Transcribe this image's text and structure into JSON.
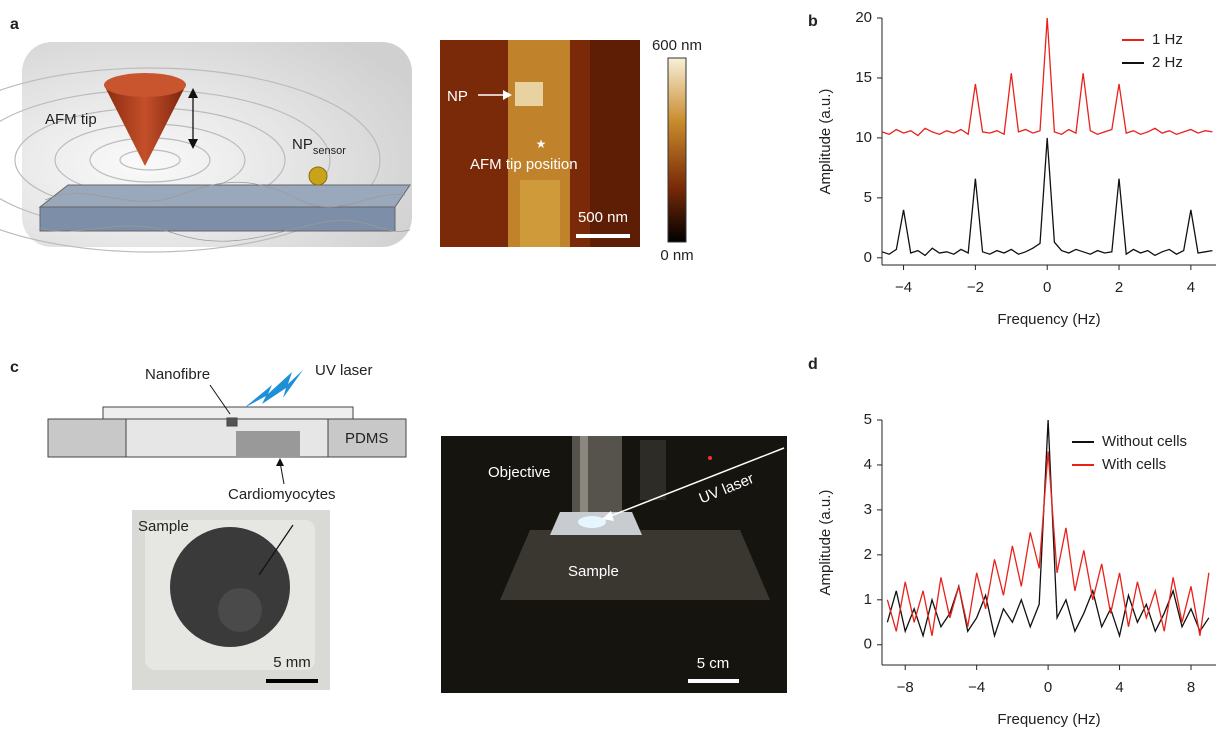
{
  "figure": {
    "panel_labels": {
      "a": "a",
      "b": "b",
      "c": "c",
      "d": "d"
    },
    "afm_schematic": {
      "tip_label": "AFM tip",
      "np_label": "NP",
      "np_subscript": "sensor"
    },
    "afm_image": {
      "np_label": "NP",
      "tip_position": "AFM tip position",
      "scale_bar": "500 nm",
      "colorbar_max": "600 nm",
      "colorbar_min": "0 nm"
    },
    "device_schematic": {
      "nanofibre": "Nanofibre",
      "uv_laser": "UV laser",
      "pdms": "PDMS",
      "cells": "Cardiomyocytes"
    },
    "sample_photo": {
      "label": "Sample",
      "scale_bar": "5 mm"
    },
    "setup_photo": {
      "objective": "Objective",
      "uv_laser": "UV laser",
      "sample": "Sample",
      "scale_bar": "5 cm"
    }
  },
  "chart_data": [
    {
      "type": "line",
      "x_label": "Frequency (Hz)",
      "y_label": "Amplitude (a.u.)",
      "legend": "upper right",
      "x": [
        -4.6,
        -4.4,
        -4.2,
        -4.0,
        -3.8,
        -3.6,
        -3.4,
        -3.2,
        -3.0,
        -2.8,
        -2.6,
        -2.4,
        -2.2,
        -2.0,
        -1.8,
        -1.6,
        -1.4,
        -1.2,
        -1.0,
        -0.8,
        -0.6,
        -0.4,
        -0.2,
        0,
        0.2,
        0.4,
        0.6,
        0.8,
        1.0,
        1.2,
        1.4,
        1.6,
        1.8,
        2.0,
        2.2,
        2.4,
        2.6,
        2.8,
        3.0,
        3.2,
        3.4,
        3.6,
        3.8,
        4.0,
        4.2,
        4.4,
        4.6
      ],
      "series": [
        {
          "name": "1 Hz",
          "color": "#e8221b",
          "values": [
            10.5,
            10.3,
            10.7,
            10.4,
            10.6,
            10.2,
            10.8,
            10.5,
            10.3,
            10.6,
            10.4,
            10.7,
            10.3,
            14.5,
            10.5,
            10.4,
            10.6,
            10.3,
            15.4,
            10.5,
            10.7,
            10.4,
            10.6,
            20,
            10.5,
            10.3,
            10.7,
            10.4,
            15.4,
            10.6,
            10.3,
            10.5,
            10.7,
            14.5,
            10.4,
            10.6,
            10.3,
            10.5,
            10.8,
            10.4,
            10.6,
            10.3,
            10.5,
            10.7,
            10.4,
            10.6,
            10.5
          ]
        },
        {
          "name": "2 Hz",
          "color": "#111111",
          "values": [
            0.5,
            0.3,
            0.7,
            4.0,
            0.4,
            0.6,
            0.2,
            0.8,
            0.4,
            0.5,
            0.3,
            0.7,
            0.4,
            6.6,
            0.5,
            0.3,
            0.6,
            0.4,
            0.7,
            0.3,
            0.5,
            0.8,
            1.2,
            10,
            1.3,
            0.6,
            0.4,
            0.7,
            0.5,
            0.3,
            0.6,
            0.4,
            0.5,
            6.6,
            0.3,
            0.7,
            0.4,
            0.6,
            0.2,
            0.5,
            0.7,
            0.3,
            0.6,
            4.0,
            0.4,
            0.5,
            0.6
          ]
        }
      ],
      "xlim": [
        -4.6,
        4.7
      ],
      "ylim": [
        -0.6,
        20
      ],
      "xticks": [
        {
          "value": -4,
          "label": "−4"
        },
        {
          "value": -2,
          "label": "−2"
        },
        0,
        2,
        4
      ],
      "yticks": [
        0,
        5,
        10,
        15,
        20
      ]
    },
    {
      "type": "line",
      "x_label": "Frequency (Hz)",
      "y_label": "Amplitude (a.u.)",
      "legend": "upper right",
      "x": [
        -9,
        -8.5,
        -8,
        -7.5,
        -7,
        -6.5,
        -6,
        -5.5,
        -5,
        -4.5,
        -4,
        -3.5,
        -3,
        -2.5,
        -2,
        -1.5,
        -1,
        -0.5,
        0,
        0.5,
        1,
        1.5,
        2,
        2.5,
        3,
        3.5,
        4,
        4.5,
        5,
        5.5,
        6,
        6.5,
        7,
        7.5,
        8,
        8.5,
        9
      ],
      "series": [
        {
          "name": "Without cells",
          "color": "#111111",
          "values": [
            0.5,
            1.2,
            0.3,
            0.8,
            0.2,
            1.0,
            0.4,
            0.7,
            1.3,
            0.3,
            0.6,
            1.1,
            0.2,
            0.8,
            0.5,
            1.0,
            0.4,
            0.9,
            5,
            0.6,
            1.0,
            0.3,
            0.7,
            1.2,
            0.4,
            0.8,
            0.2,
            1.1,
            0.5,
            0.9,
            0.3,
            0.7,
            1.2,
            0.4,
            0.8,
            0.3,
            0.6
          ]
        },
        {
          "name": "With cells",
          "color": "#e8221b",
          "values": [
            1.0,
            0.3,
            1.4,
            0.5,
            1.2,
            0.2,
            1.5,
            0.6,
            1.3,
            0.4,
            1.6,
            0.8,
            1.9,
            1.1,
            2.2,
            1.3,
            2.5,
            1.7,
            4.3,
            1.6,
            2.6,
            1.2,
            2.1,
            1.0,
            1.8,
            0.7,
            1.6,
            0.4,
            1.4,
            0.6,
            1.2,
            0.3,
            1.5,
            0.5,
            1.3,
            0.2,
            1.6
          ]
        }
      ],
      "xlim": [
        -9.3,
        9.4
      ],
      "ylim": [
        -0.45,
        5
      ],
      "xticks": [
        {
          "value": -8,
          "label": "−8"
        },
        {
          "value": -4,
          "label": "−4"
        },
        0,
        4,
        8
      ],
      "yticks": [
        0,
        1,
        2,
        3,
        4,
        5
      ]
    }
  ]
}
